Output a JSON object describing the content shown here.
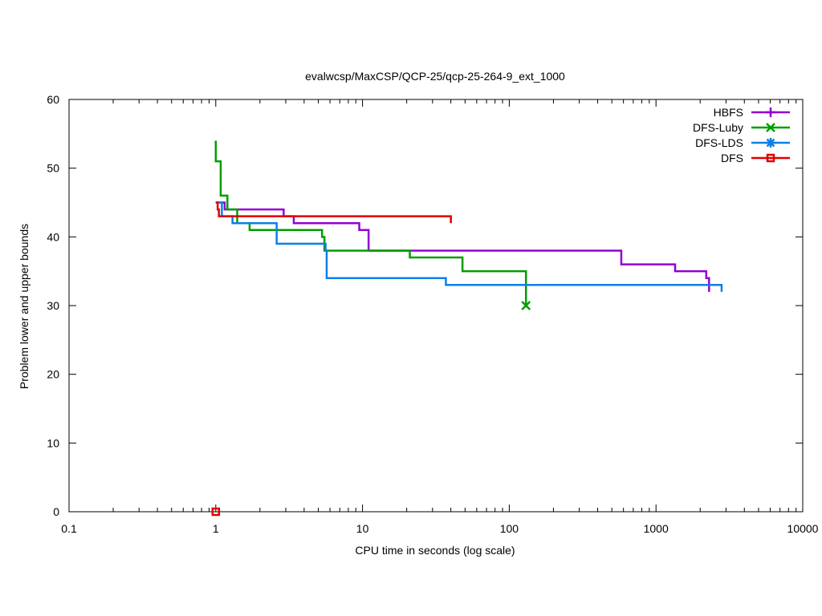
{
  "chart_data": {
    "type": "line",
    "title": "evalwcsp/MaxCSP/QCP-25/qcp-25-264-9_ext_1000",
    "xlabel": "CPU time in seconds (log scale)",
    "ylabel": "Problem lower and upper bounds",
    "x_scale": "log",
    "xlim": [
      0.1,
      10000
    ],
    "ylim": [
      0,
      60
    ],
    "x_ticks": [
      {
        "value": 0.1,
        "label": "0.1"
      },
      {
        "value": 1,
        "label": "1"
      },
      {
        "value": 10,
        "label": "10"
      },
      {
        "value": 100,
        "label": "100"
      },
      {
        "value": 1000,
        "label": "1000"
      },
      {
        "value": 10000,
        "label": "10000"
      }
    ],
    "y_ticks": [
      {
        "value": 0,
        "label": "0"
      },
      {
        "value": 10,
        "label": "10"
      },
      {
        "value": 20,
        "label": "20"
      },
      {
        "value": 30,
        "label": "30"
      },
      {
        "value": 40,
        "label": "40"
      },
      {
        "value": 50,
        "label": "50"
      },
      {
        "value": 60,
        "label": "60"
      }
    ],
    "grid": false,
    "legend_position": "top-right",
    "series": [
      {
        "name": "HBFS",
        "color": "#9400d3",
        "marker": "plus",
        "step": true,
        "points": [
          [
            1.0,
            45
          ],
          [
            1.15,
            44
          ],
          [
            2.9,
            43
          ],
          [
            3.4,
            42
          ],
          [
            9.5,
            41
          ],
          [
            11.0,
            38
          ],
          [
            580,
            36
          ],
          [
            1350,
            35
          ],
          [
            2200,
            34
          ],
          [
            2300,
            33
          ],
          [
            2300,
            32
          ]
        ],
        "markers": []
      },
      {
        "name": "DFS-Luby",
        "color": "#009e00",
        "marker": "cross",
        "step": true,
        "points": [
          [
            1.0,
            54
          ],
          [
            1.0,
            51
          ],
          [
            1.08,
            46
          ],
          [
            1.2,
            44
          ],
          [
            1.4,
            42
          ],
          [
            1.7,
            41
          ],
          [
            5.3,
            40
          ],
          [
            5.5,
            38
          ],
          [
            21,
            37
          ],
          [
            48,
            35
          ],
          [
            130,
            34
          ],
          [
            130,
            30
          ]
        ],
        "markers": [
          [
            130,
            30
          ]
        ]
      },
      {
        "name": "DFS-LDS",
        "color": "#0f7fe6",
        "marker": "star",
        "step": true,
        "points": [
          [
            1.0,
            45
          ],
          [
            1.1,
            44
          ],
          [
            1.1,
            43
          ],
          [
            1.3,
            42
          ],
          [
            2.6,
            39
          ],
          [
            5.6,
            38
          ],
          [
            5.7,
            34
          ],
          [
            37,
            33
          ],
          [
            2800,
            33
          ],
          [
            2800,
            32
          ]
        ],
        "markers": []
      },
      {
        "name": "DFS",
        "color": "#e00000",
        "marker": "square",
        "step": true,
        "points": [
          [
            1.0,
            45
          ],
          [
            1.03,
            44
          ],
          [
            1.05,
            43
          ],
          [
            40,
            43
          ],
          [
            40,
            42
          ]
        ],
        "markers": [
          [
            1.0,
            0
          ]
        ]
      }
    ]
  }
}
